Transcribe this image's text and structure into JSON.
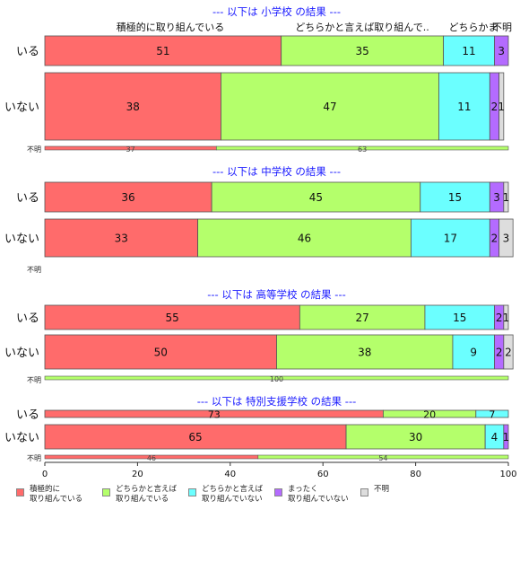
{
  "chart_data": {
    "type": "bar",
    "orientation": "horizontal",
    "stacked": "percent",
    "categories_order": [
      "積極的に取り組んでいる",
      "どちらかと言えば取り組んでいる",
      "どちらかと言えば取り組んでいない",
      "まったく取り組んでいない",
      "不明"
    ],
    "colors": [
      "#FF6B6B",
      "#B4FF6B",
      "#6BFFFF",
      "#B46BFF",
      "#DDDDDD"
    ],
    "top_labels": [
      "積極的に取り組んでいる",
      "どちらかと言えば取り組んで..",
      "どちらかま",
      "不明"
    ],
    "xaxis": {
      "ticks": [
        "0",
        "20",
        "40",
        "60",
        "80",
        "100"
      ],
      "xlim": [
        0,
        100
      ]
    },
    "panels": [
      {
        "title": "--- 以下は 小学校 の結果 ---",
        "rows": [
          {
            "label": "いる",
            "values": [
              51,
              35,
              11,
              3,
              0
            ],
            "labels": [
              "51",
              "35",
              "11",
              "3",
              ""
            ]
          },
          {
            "label": "いない",
            "values": [
              38,
              47,
              11,
              2,
              1
            ],
            "labels": [
              "38",
              "47",
              "11",
              "2",
              "1"
            ]
          },
          {
            "label": "不明",
            "thin": true,
            "values": [
              37,
              63,
              0,
              0,
              0
            ],
            "labels": [
              "37",
              "63",
              "",
              "",
              ""
            ]
          }
        ]
      },
      {
        "title": "--- 以下は 中学校 の結果 ---",
        "rows": [
          {
            "label": "いる",
            "values": [
              36,
              45,
              15,
              3,
              1
            ],
            "labels": [
              "36",
              "45",
              "15",
              "3",
              "1"
            ]
          },
          {
            "label": "いない",
            "values": [
              33,
              46,
              17,
              2,
              3
            ],
            "labels": [
              "33",
              "46",
              "17",
              "2",
              "3"
            ]
          },
          {
            "label": "不明",
            "thin": true,
            "values": [
              0,
              0,
              0,
              0,
              0
            ],
            "labels": [
              "",
              "",
              "",
              "",
              ""
            ]
          }
        ]
      },
      {
        "title": "--- 以下は 高等学校 の結果 ---",
        "rows": [
          {
            "label": "いる",
            "values": [
              55,
              27,
              15,
              2,
              1
            ],
            "labels": [
              "55",
              "27",
              "15",
              "2",
              "1"
            ]
          },
          {
            "label": "いない",
            "values": [
              50,
              38,
              9,
              2,
              2
            ],
            "labels": [
              "50",
              "38",
              "9",
              "2",
              "2"
            ]
          },
          {
            "label": "不明",
            "thin": true,
            "values": [
              0,
              100,
              0,
              0,
              0
            ],
            "labels": [
              "",
              "100",
              "",
              "",
              ""
            ]
          }
        ]
      },
      {
        "title": "--- 以下は 特別支援学校 の結果 ---",
        "rows": [
          {
            "label": "いる",
            "values": [
              73,
              20,
              7,
              0,
              0
            ],
            "labels": [
              "73",
              "20",
              "7",
              "",
              ""
            ]
          },
          {
            "label": "いない",
            "values": [
              65,
              30,
              4,
              1,
              0
            ],
            "labels": [
              "65",
              "30",
              "4",
              "1",
              ""
            ]
          },
          {
            "label": "不明",
            "thin": true,
            "values": [
              46,
              54,
              0,
              0,
              0
            ],
            "labels": [
              "46",
              "54",
              "",
              "",
              ""
            ]
          }
        ]
      }
    ]
  },
  "legend": [
    {
      "label": "積極的に\n取り組んでいる",
      "color": "#FF6B6B"
    },
    {
      "label": "どちらかと言えば\n取り組んでいる",
      "color": "#B4FF6B"
    },
    {
      "label": "どちらかと言えば\n取り組んでいない",
      "color": "#6BFFFF"
    },
    {
      "label": "まったく\n取り組んでいない",
      "color": "#B46BFF"
    },
    {
      "label": "不明",
      "color": "#DDDDDD"
    }
  ]
}
